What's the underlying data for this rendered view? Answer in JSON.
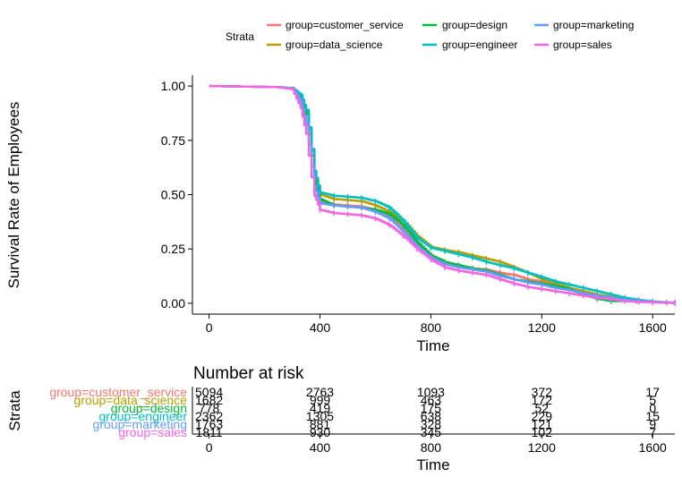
{
  "chart_data": [
    {
      "type": "line",
      "subtype": "kaplan-meier survival curves",
      "ylabel": "Survival Rate of Employees",
      "xlabel": "Time",
      "xlim": [
        -60,
        1680
      ],
      "ylim": [
        -0.05,
        1.05
      ],
      "xticks": [
        0,
        400,
        800,
        1200,
        1600
      ],
      "yticks": [
        0,
        0.25,
        0.5,
        0.75,
        1
      ],
      "ytick_labels": [
        "0.00",
        "0.25",
        "0.50",
        "0.75",
        "1.00"
      ],
      "grid": false,
      "legend": {
        "title": "Strata",
        "position": "top",
        "entries": [
          "group=customer_service",
          "group=design",
          "group=marketing",
          "group=data_science",
          "group=engineer",
          "group=sales"
        ]
      },
      "series": [
        {
          "name": "group=customer_service",
          "color": "#f8766d",
          "x": [
            0,
            250,
            300,
            330,
            350,
            360,
            370,
            380,
            400,
            450,
            500,
            550,
            600,
            650,
            700,
            750,
            800,
            850,
            900,
            950,
            1000,
            1050,
            1100,
            1150,
            1200,
            1250,
            1300,
            1350,
            1400,
            1450,
            1500,
            1550,
            1600,
            1650,
            1680
          ],
          "y": [
            1.0,
            0.995,
            0.99,
            0.93,
            0.82,
            0.73,
            0.63,
            0.55,
            0.47,
            0.455,
            0.45,
            0.445,
            0.43,
            0.4,
            0.34,
            0.27,
            0.22,
            0.18,
            0.17,
            0.16,
            0.155,
            0.14,
            0.13,
            0.11,
            0.1,
            0.085,
            0.07,
            0.05,
            0.035,
            0.025,
            0.015,
            0.01,
            0.005,
            0.003,
            0.002
          ]
        },
        {
          "name": "group=data_science",
          "color": "#b79f00",
          "x": [
            0,
            250,
            300,
            330,
            350,
            360,
            370,
            380,
            400,
            450,
            500,
            550,
            600,
            650,
            700,
            750,
            800,
            850,
            900,
            950,
            1000,
            1050,
            1100,
            1150,
            1200,
            1250,
            1300,
            1350,
            1400,
            1450,
            1500,
            1550,
            1600,
            1650,
            1680
          ],
          "y": [
            1.0,
            0.995,
            0.99,
            0.95,
            0.88,
            0.8,
            0.7,
            0.6,
            0.5,
            0.48,
            0.475,
            0.47,
            0.45,
            0.42,
            0.38,
            0.31,
            0.26,
            0.245,
            0.235,
            0.22,
            0.205,
            0.19,
            0.165,
            0.14,
            0.11,
            0.09,
            0.07,
            0.055,
            0.04,
            0.03,
            0.02,
            0.01,
            0.005,
            0.003,
            0.002
          ]
        },
        {
          "name": "group=design",
          "color": "#00ba38",
          "x": [
            0,
            250,
            300,
            330,
            350,
            360,
            370,
            380,
            400,
            450,
            500,
            550,
            600,
            650,
            700,
            750,
            800,
            850,
            900,
            950,
            1000,
            1050,
            1100,
            1150,
            1200,
            1250,
            1300,
            1350,
            1400,
            1450,
            1500,
            1540
          ],
          "y": [
            1.0,
            0.995,
            0.99,
            0.95,
            0.87,
            0.78,
            0.68,
            0.58,
            0.48,
            0.45,
            0.445,
            0.44,
            0.43,
            0.41,
            0.36,
            0.28,
            0.22,
            0.19,
            0.175,
            0.16,
            0.15,
            0.13,
            0.11,
            0.1,
            0.09,
            0.08,
            0.065,
            0.04,
            0.02,
            0.01,
            0.01,
            0.01
          ]
        },
        {
          "name": "group=engineer",
          "color": "#00bfc4",
          "x": [
            0,
            250,
            300,
            330,
            350,
            360,
            370,
            380,
            400,
            450,
            500,
            550,
            600,
            650,
            700,
            750,
            800,
            850,
            900,
            950,
            1000,
            1050,
            1100,
            1150,
            1200,
            1250,
            1300,
            1350,
            1400,
            1450,
            1500,
            1550,
            1600,
            1650,
            1680
          ],
          "y": [
            1.0,
            0.995,
            0.99,
            0.96,
            0.89,
            0.81,
            0.71,
            0.61,
            0.51,
            0.495,
            0.49,
            0.485,
            0.47,
            0.44,
            0.38,
            0.3,
            0.255,
            0.24,
            0.225,
            0.21,
            0.19,
            0.175,
            0.16,
            0.14,
            0.12,
            0.1,
            0.085,
            0.07,
            0.055,
            0.04,
            0.025,
            0.015,
            0.008,
            0.004,
            0.003
          ]
        },
        {
          "name": "group=marketing",
          "color": "#619cff",
          "x": [
            0,
            250,
            300,
            330,
            350,
            360,
            370,
            380,
            400,
            450,
            500,
            550,
            600,
            650,
            700,
            750,
            800,
            850,
            900,
            950,
            1000,
            1050,
            1100,
            1150,
            1200,
            1250,
            1300,
            1350,
            1400,
            1450,
            1500,
            1550,
            1600,
            1650,
            1680
          ],
          "y": [
            1.0,
            0.995,
            0.99,
            0.93,
            0.83,
            0.73,
            0.63,
            0.54,
            0.46,
            0.45,
            0.445,
            0.44,
            0.42,
            0.39,
            0.33,
            0.26,
            0.21,
            0.18,
            0.165,
            0.155,
            0.145,
            0.125,
            0.11,
            0.095,
            0.085,
            0.07,
            0.06,
            0.045,
            0.035,
            0.025,
            0.015,
            0.01,
            0.005,
            0.003,
            0.002
          ]
        },
        {
          "name": "group=sales",
          "color": "#f564e3",
          "x": [
            0,
            250,
            300,
            330,
            350,
            360,
            370,
            380,
            400,
            450,
            500,
            550,
            600,
            650,
            700,
            750,
            800,
            850,
            900,
            950,
            1000,
            1050,
            1100,
            1150,
            1200,
            1250,
            1300,
            1350,
            1400,
            1450,
            1500,
            1550,
            1600,
            1650,
            1680
          ],
          "y": [
            1.0,
            0.995,
            0.985,
            0.9,
            0.78,
            0.68,
            0.58,
            0.5,
            0.43,
            0.415,
            0.41,
            0.405,
            0.39,
            0.36,
            0.31,
            0.25,
            0.2,
            0.165,
            0.15,
            0.14,
            0.13,
            0.11,
            0.09,
            0.075,
            0.065,
            0.055,
            0.045,
            0.035,
            0.025,
            0.018,
            0.01,
            0.006,
            0.004,
            0.002,
            0.001
          ]
        }
      ]
    },
    {
      "type": "table",
      "title": "Number at risk",
      "ylabel": "Strata",
      "xlabel": "Time",
      "xlim": [
        -60,
        1680
      ],
      "xticks": [
        0,
        400,
        800,
        1200,
        1600
      ],
      "columns": [
        0,
        400,
        800,
        1200,
        1600
      ],
      "rows": [
        {
          "label": "group=customer_service",
          "color": "#f8766d",
          "values": [
            "5094",
            "2763",
            "1093",
            "372",
            "17"
          ]
        },
        {
          "label": "group=data_science",
          "color": "#b79f00",
          "values": [
            "1682",
            "999",
            "463",
            "172",
            "5"
          ]
        },
        {
          "label": "group=design",
          "color": "#00ba38",
          "values": [
            "778",
            "419",
            "175",
            "52",
            "0"
          ]
        },
        {
          "label": "group=engineer",
          "color": "#00bfc4",
          "values": [
            "2362",
            "1305",
            "638",
            "229",
            "15"
          ]
        },
        {
          "label": "group=marketing",
          "color": "#619cff",
          "values": [
            "1763",
            "881",
            "328",
            "121",
            "9"
          ]
        },
        {
          "label": "group=sales",
          "color": "#f564e3",
          "values": [
            "1811",
            "930",
            "345",
            "102",
            "7"
          ]
        }
      ]
    }
  ]
}
